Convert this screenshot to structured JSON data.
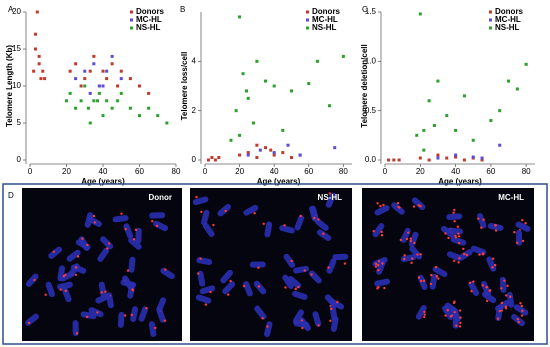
{
  "chart_data": [
    {
      "type": "scatter",
      "panel": "A",
      "xlabel": "Age (years)",
      "ylabel": "Telomere Length (Kb)",
      "xlim": [
        0,
        80
      ],
      "xticks": [
        0,
        20,
        40,
        60,
        80
      ],
      "ylim": [
        0,
        20
      ],
      "yticks": [
        0,
        5,
        10,
        15,
        20
      ],
      "legend": "top-right",
      "series": [
        {
          "name": "Donors",
          "color": "#c0392b",
          "x": [
            2,
            3,
            4,
            5,
            6,
            7,
            3,
            5,
            8,
            22,
            25,
            28,
            30,
            33,
            35,
            38,
            40,
            42,
            45,
            48,
            50,
            55,
            60,
            65
          ],
          "values": [
            12,
            17,
            20,
            14,
            11,
            12,
            15,
            13,
            11,
            12,
            13,
            10,
            11,
            12,
            14,
            10,
            12,
            11,
            13,
            10,
            12,
            11,
            10,
            9
          ]
        },
        {
          "name": "MC-HL",
          "color": "#5b4bd6",
          "x": [
            25,
            30,
            35,
            38,
            42,
            45,
            50,
            33,
            40
          ],
          "values": [
            11,
            12,
            13,
            10,
            12,
            14,
            11,
            9,
            10
          ]
        },
        {
          "name": "NS-HL",
          "color": "#2ca02c",
          "x": [
            20,
            22,
            25,
            28,
            30,
            32,
            35,
            38,
            40,
            42,
            45,
            48,
            50,
            55,
            60,
            65,
            70,
            75,
            33,
            37
          ],
          "values": [
            8,
            9,
            7,
            8,
            10,
            7,
            8,
            9,
            6,
            8,
            7,
            8,
            9,
            7,
            6,
            7,
            6,
            5,
            5,
            8
          ]
        }
      ]
    },
    {
      "type": "scatter",
      "panel": "B",
      "xlabel": "Age (years)",
      "ylabel": "Telomere loss/cell",
      "xlim": [
        0,
        85
      ],
      "xticks": [
        0,
        20,
        40,
        60,
        80
      ],
      "ylim": [
        0,
        6
      ],
      "yticks": [
        0,
        2,
        4
      ],
      "legend": "top-right",
      "series": [
        {
          "name": "Donors",
          "color": "#c0392b",
          "x": [
            2,
            4,
            6,
            8,
            20,
            25,
            30,
            35,
            40,
            45,
            50,
            55,
            30,
            38
          ],
          "values": [
            0,
            0.1,
            0,
            0.1,
            0.2,
            0.3,
            0.1,
            0.5,
            0.2,
            0.3,
            0.1,
            0.2,
            0.6,
            0.4
          ]
        },
        {
          "name": "MC-HL",
          "color": "#5b4bd6",
          "x": [
            25,
            32,
            40,
            48,
            55,
            75
          ],
          "values": [
            0.2,
            0.4,
            0.3,
            0.6,
            0.2,
            0.5
          ]
        },
        {
          "name": "NS-HL",
          "color": "#2ca02c",
          "x": [
            18,
            20,
            22,
            25,
            28,
            30,
            35,
            40,
            45,
            50,
            60,
            65,
            72,
            80,
            20,
            24,
            15
          ],
          "values": [
            2,
            5.8,
            3.5,
            2.5,
            1.5,
            4,
            3.2,
            3,
            1.2,
            2.8,
            3.1,
            4,
            2.2,
            4.2,
            1,
            2.8,
            0.8
          ]
        }
      ]
    },
    {
      "type": "scatter",
      "panel": "C",
      "xlabel": "Age (years)",
      "ylabel": "Telomere deletion/cell",
      "xlim": [
        0,
        85
      ],
      "xticks": [
        0,
        20,
        40,
        60,
        80
      ],
      "ylim": [
        0,
        1.5
      ],
      "yticks": [
        {
          "value": 0,
          "label": "0.0"
        },
        {
          "value": 0.5,
          "label": "0.5"
        },
        {
          "value": 1,
          "label": "1.0"
        },
        {
          "value": 1.5,
          "label": "1.5"
        }
      ],
      "legend": "top-right",
      "series": [
        {
          "name": "Donors",
          "color": "#c0392b",
          "x": [
            2,
            5,
            8,
            20,
            25,
            30,
            35,
            40,
            45,
            50,
            55
          ],
          "values": [
            0,
            0,
            0,
            0.02,
            0,
            0.05,
            0.02,
            0.03,
            0,
            0.02,
            0
          ]
        },
        {
          "name": "MC-HL",
          "color": "#5b4bd6",
          "x": [
            30,
            40,
            50,
            55,
            65
          ],
          "values": [
            0.02,
            0.05,
            0.03,
            0.02,
            0.15
          ]
        },
        {
          "name": "NS-HL",
          "color": "#2ca02c",
          "x": [
            18,
            20,
            22,
            25,
            30,
            35,
            40,
            45,
            50,
            60,
            65,
            70,
            75,
            80,
            22,
            28
          ],
          "values": [
            0.25,
            1.48,
            0.3,
            0.6,
            0.8,
            0.45,
            0.3,
            0.65,
            0.2,
            0.4,
            0.5,
            0.8,
            0.72,
            0.97,
            0.1,
            0.35
          ]
        }
      ]
    }
  ],
  "micrographs": {
    "panel": "D",
    "labels": [
      "Donor",
      "NS-HL",
      "MC-HL"
    ]
  }
}
